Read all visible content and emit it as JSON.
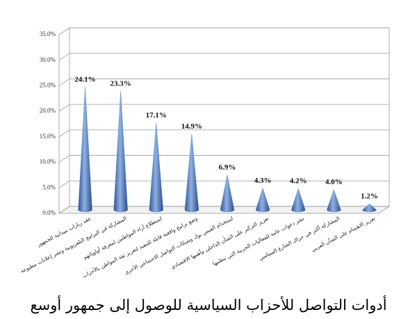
{
  "chart_data": {
    "type": "bar",
    "title": "أدوات التواصل للأحزاب السياسية للوصول إلى جمهور أوسع",
    "categories": [
      "عقد زيارات ميدانية للجمهور",
      "المشاركة في البرامج التلفزيونية ونشر إعلانات مطبوعة",
      "استطلاع آراء المواطنين لمعرفة أولوياتهم",
      "وضع برامج واقعية قابلة للتنفيذ لتعزيز ثقة المواطن بالأحزاب",
      "استخدام الفيس بوك وشبكات التواصل الاجتماعي الأخرى",
      "تعزيز التركيز على الشأن الداخلي وأهمها الاقتصادي",
      "نشر دعوات عامة للفعاليات الحزبية التي تنظمها",
      "المشاركة أكثر في حراك الشارع السياسي",
      "تعزيز الاهتمام على الشأن العربي"
    ],
    "values": [
      24.1,
      23.3,
      17.1,
      14.9,
      6.9,
      4.3,
      4.2,
      4.0,
      1.2
    ],
    "value_labels": [
      "24.1%",
      "23.3%",
      "17.1%",
      "14.9%",
      "6.9%",
      "4.3%",
      "4.2%",
      "4.0%",
      "1.2%"
    ],
    "color": "#4f81bd",
    "ylim": [
      0,
      35
    ],
    "yticks": [
      {
        "value": 0,
        "label": "0.0%"
      },
      {
        "value": 5,
        "label": "5.0%"
      },
      {
        "value": 10,
        "label": "10.0%"
      },
      {
        "value": 15,
        "label": "15.0%"
      },
      {
        "value": 20,
        "label": "20.0%"
      },
      {
        "value": 25,
        "label": "25.0%"
      },
      {
        "value": 30,
        "label": "30.0%"
      },
      {
        "value": 35,
        "label": "35.0%"
      }
    ],
    "grid": true
  }
}
